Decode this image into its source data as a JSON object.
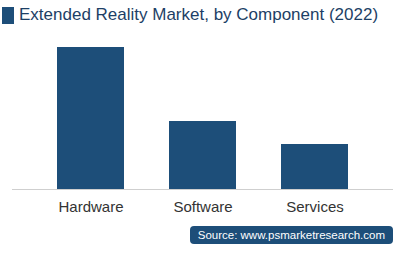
{
  "chart_data": {
    "type": "bar",
    "title": "Extended Reality Market, by Component (2022)",
    "categories": [
      "Hardware",
      "Software",
      "Services"
    ],
    "values": [
      142,
      68,
      45
    ],
    "color": "#1d4e79",
    "ylim": [
      0,
      150
    ],
    "tick_labels": "x",
    "source": "Source: www.psmarketresearch.com"
  }
}
